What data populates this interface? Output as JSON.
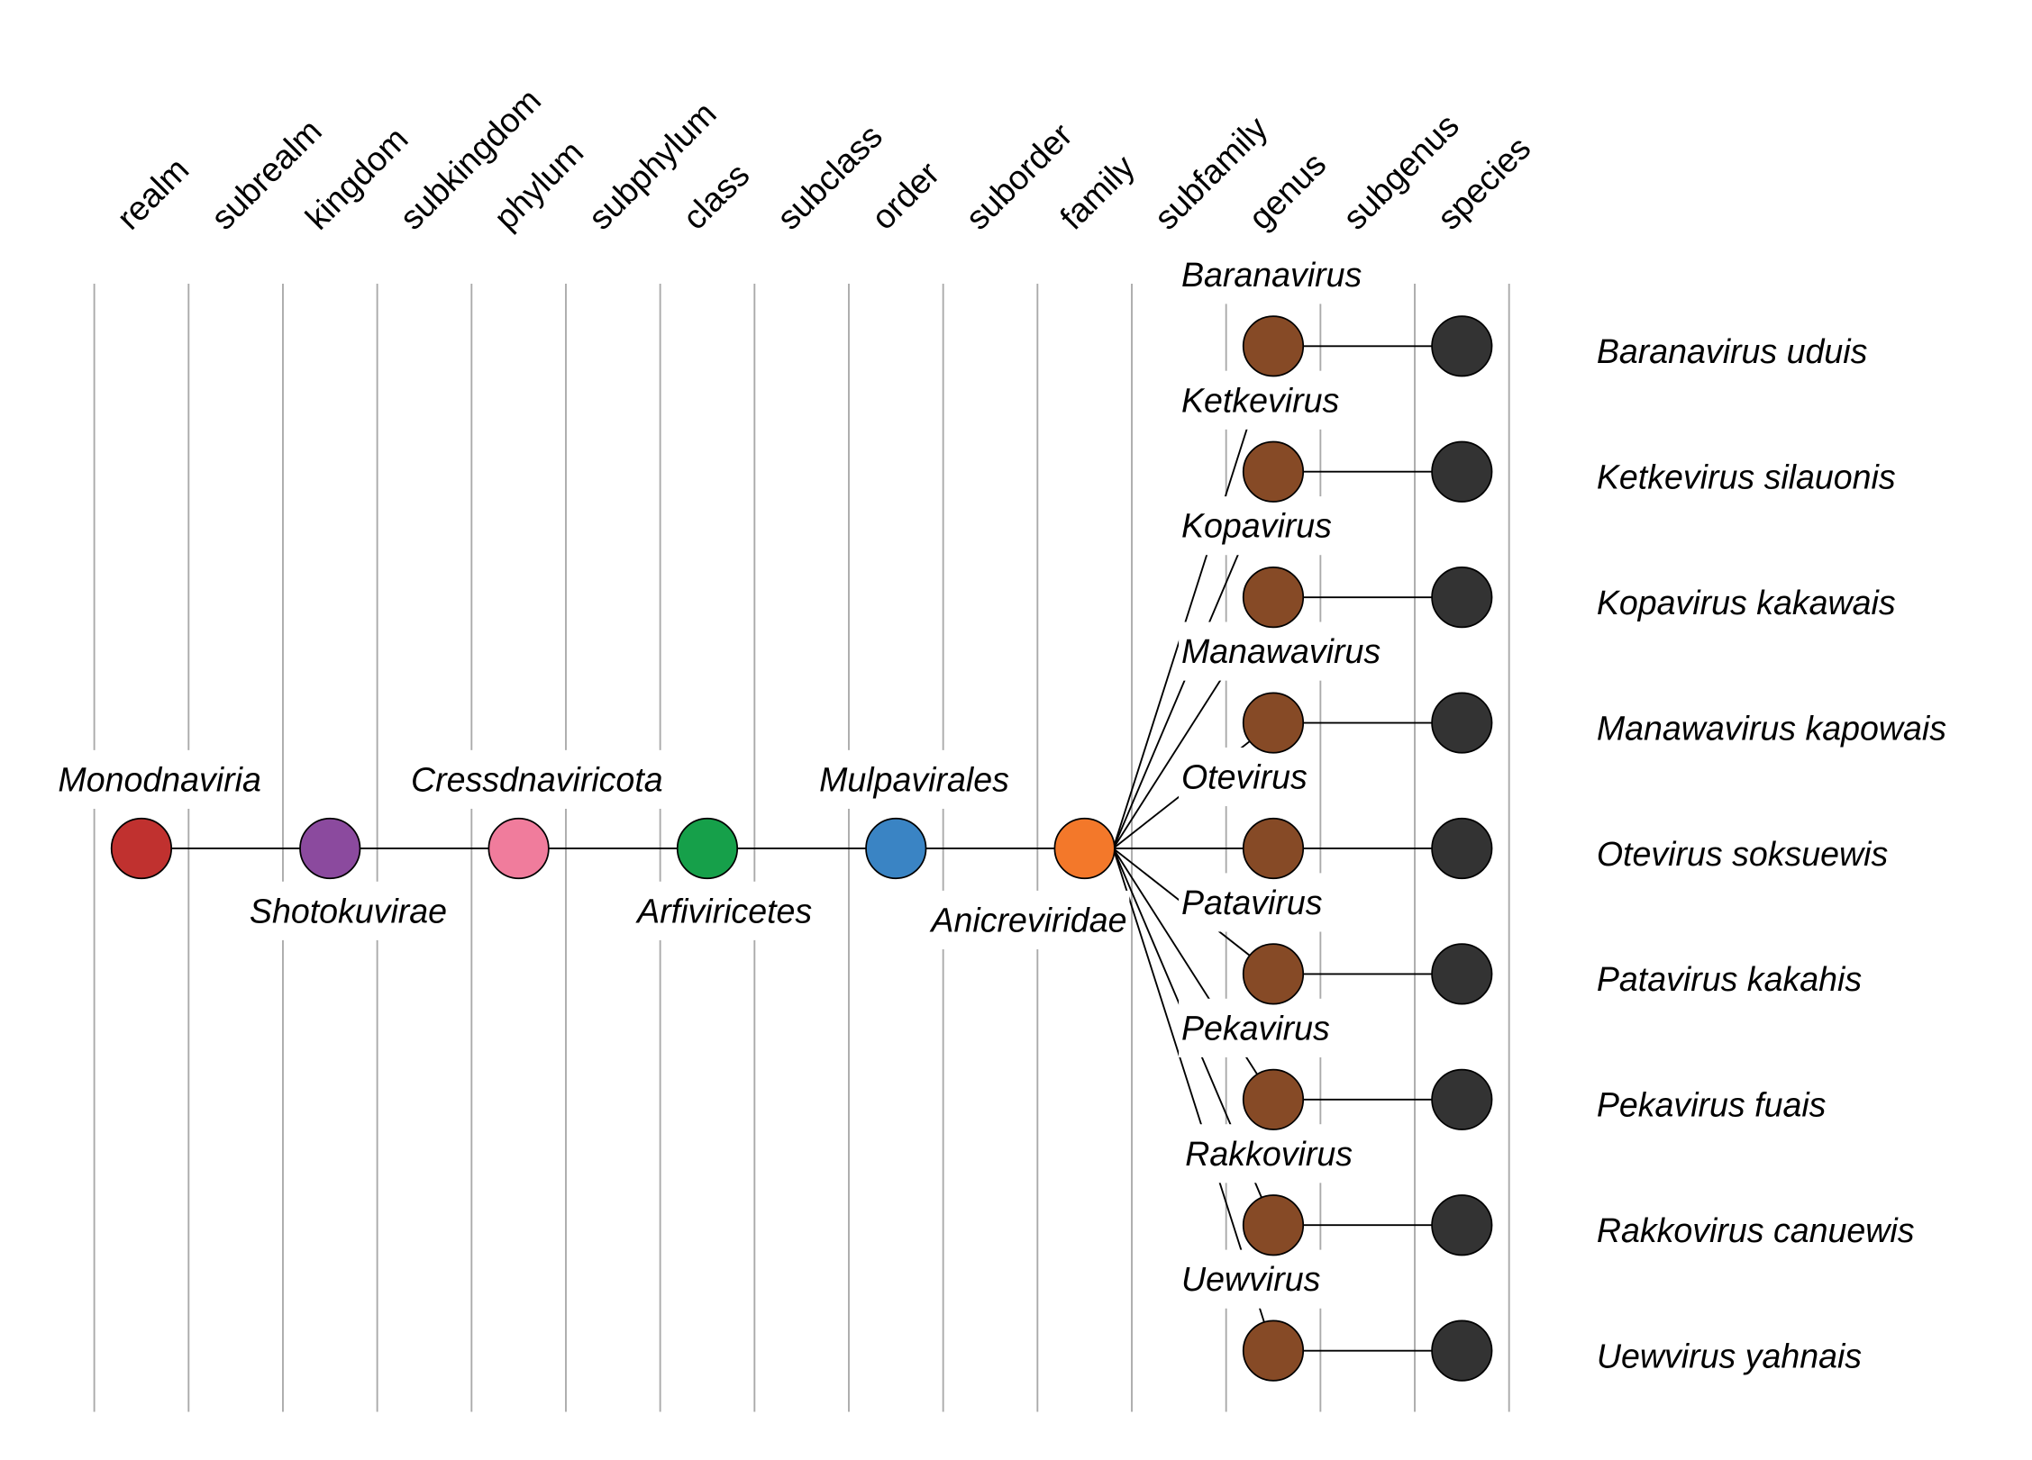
{
  "ranks": [
    "realm",
    "subrealm",
    "kingdom",
    "subkingdom",
    "phylum",
    "subphylum",
    "class",
    "subclass",
    "order",
    "suborder",
    "family",
    "subfamily",
    "genus",
    "subgenus",
    "species"
  ],
  "chain": [
    {
      "name": "Monodnaviria",
      "rank": "realm",
      "color": "#c0312f",
      "label_pos": "above"
    },
    {
      "name": "Shotokuvirae",
      "rank": "kingdom",
      "color": "#8b4a9e",
      "label_pos": "below"
    },
    {
      "name": "Cressdnaviricota",
      "rank": "phylum",
      "color": "#f07c9c",
      "label_pos": "above"
    },
    {
      "name": "Arfiviricetes",
      "rank": "class",
      "color": "#16a04a",
      "label_pos": "below"
    },
    {
      "name": "Mulpavirales",
      "rank": "order",
      "color": "#3a84c4",
      "label_pos": "above"
    },
    {
      "name": "Anicreviridae",
      "rank": "family",
      "color": "#f3782a",
      "label_pos": "below"
    }
  ],
  "genus_color": "#864a26",
  "species_color": "#333333",
  "genera": [
    {
      "genus": "Baranavirus",
      "species": "Baranavirus uduis"
    },
    {
      "genus": "Ketkevirus",
      "species": "Ketkevirus silauonis"
    },
    {
      "genus": "Kopavirus",
      "species": "Kopavirus kakawais"
    },
    {
      "genus": "Manawavirus",
      "species": "Manawavirus kapowais"
    },
    {
      "genus": "Otevirus",
      "species": "Otevirus soksuewis"
    },
    {
      "genus": "Patavirus",
      "species": "Patavirus kakahis"
    },
    {
      "genus": "Pekavirus",
      "species": "Pekavirus fuais"
    },
    {
      "genus": "Rakkovirus",
      "species": "Rakkovirus canuewis"
    },
    {
      "genus": "Uewvirus",
      "species": "Uewvirus yahnais"
    }
  ]
}
